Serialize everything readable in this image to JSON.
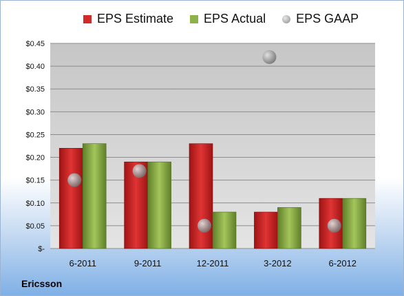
{
  "company": "Ericsson",
  "chart_data": {
    "type": "bar",
    "categories": [
      "6-2011",
      "9-2011",
      "12-2011",
      "3-2012",
      "6-2012"
    ],
    "series": [
      {
        "name": "EPS Estimate",
        "values": [
          0.22,
          0.19,
          0.23,
          0.08,
          0.11
        ],
        "color": "#d02a2a",
        "mark": "bar"
      },
      {
        "name": "EPS Actual",
        "values": [
          0.23,
          0.19,
          0.08,
          0.09,
          0.11
        ],
        "color": "#8eb24a",
        "mark": "bar"
      },
      {
        "name": "EPS GAAP",
        "values": [
          0.15,
          0.17,
          0.05,
          0.42,
          0.05
        ],
        "color": "#a6a6a6",
        "mark": "point"
      }
    ],
    "y_ticks": [
      "$-",
      "$0.05",
      "$0.10",
      "$0.15",
      "$0.20",
      "$0.25",
      "$0.30",
      "$0.35",
      "$0.40",
      "$0.45"
    ],
    "ylim": [
      0,
      0.45
    ],
    "grid": true,
    "legend_position": "top"
  }
}
